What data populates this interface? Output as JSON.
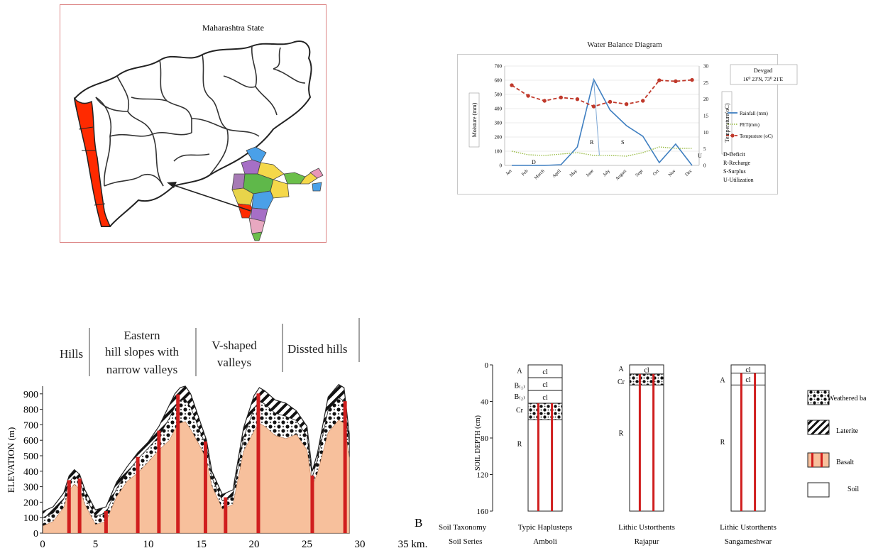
{
  "map": {
    "title": "Maharashtra State"
  },
  "water_balance": {
    "chart_data": {
      "type": "line",
      "title": "Water Balance Diagram",
      "categories": [
        "Jan",
        "Feb",
        "March",
        "April",
        "May",
        "June",
        "July",
        "August",
        "Sept",
        "Oct",
        "Nov",
        "Dec"
      ],
      "ylabel": "Moisture (mm)",
      "y2label": "Temperature(oC)",
      "ylim": [
        0,
        700
      ],
      "y2lim": [
        0,
        30
      ],
      "yticks": [
        0,
        100,
        200,
        300,
        400,
        500,
        600,
        700
      ],
      "y2ticks": [
        0,
        5,
        10,
        15,
        20,
        25,
        30
      ],
      "series": [
        {
          "name": "Rainfall (mm)",
          "axis": "left",
          "values": [
            0,
            0,
            0,
            5,
            130,
            605,
            390,
            280,
            205,
            20,
            150,
            0
          ]
        },
        {
          "name": "PET(mm)",
          "axis": "left",
          "values": [
            100,
            75,
            70,
            80,
            90,
            70,
            70,
            65,
            90,
            130,
            120,
            120
          ]
        },
        {
          "name": "Temprature (oC)",
          "axis": "right",
          "values": [
            24.2,
            21,
            19.5,
            20.5,
            20,
            17.8,
            19.2,
            18.5,
            19.5,
            25.7,
            25.4,
            25.8
          ]
        }
      ],
      "station": {
        "name": "Devgad",
        "coords": "16⁰ 23'N, 73⁰ 21'E"
      },
      "zone_labels": [
        "D",
        "R",
        "S",
        "U"
      ],
      "legend_notes": [
        "D-Deficit",
        "R-Recharge",
        "S-Surplus",
        "U-Utilization"
      ],
      "legend": "right"
    }
  },
  "cross_section": {
    "chart_data": {
      "type": "area",
      "ylabel": "ELEVATION (m)",
      "yticks": [
        "0",
        "100",
        "200",
        "300",
        "400",
        "500",
        "600",
        "700",
        "800",
        "900"
      ],
      "xticks": [
        "0",
        "5",
        "10",
        "15",
        "20",
        "25",
        "30",
        "35 km."
      ],
      "end_label": "B",
      "elevation_profile": {
        "x_km": [
          0,
          1,
          2,
          2.5,
          3,
          3.5,
          4,
          5,
          6,
          7,
          8,
          9,
          10,
          11,
          12,
          12.5,
          13,
          13.5,
          14,
          15,
          15.5,
          16,
          17,
          18,
          19,
          20,
          20.5,
          21,
          22,
          23,
          24,
          25,
          25.5,
          26,
          27,
          28,
          28.5,
          29
        ],
        "y_m": [
          140,
          170,
          260,
          370,
          410,
          380,
          280,
          150,
          170,
          330,
          430,
          520,
          590,
          690,
          830,
          900,
          940,
          950,
          900,
          700,
          600,
          400,
          250,
          280,
          680,
          890,
          940,
          920,
          860,
          840,
          790,
          690,
          400,
          520,
          880,
          960,
          940,
          640
        ]
      }
    },
    "zones": [
      "Hills",
      "Eastern\nhill slopes with\nnarrow valleys",
      "V-shaped\nvalleys",
      "Dissted hills"
    ]
  },
  "soil_profiles": {
    "yaxis_label": "SOIL DEPTH (cm)",
    "yticks": [
      "0",
      "40",
      "80",
      "120",
      "160"
    ],
    "row_labels": [
      "Soil Taxonomy",
      "Soil Series"
    ],
    "profiles": [
      {
        "taxonomy": "Typic Haplusteps",
        "series": "Amboli",
        "horizon_labels": [
          "A",
          "B₍₁₎",
          "B₍₂₎",
          "Cr",
          "R"
        ],
        "cell": "cl"
      },
      {
        "taxonomy": "Lithic Ustorthents",
        "series": "Rajapur",
        "horizon_labels": [
          "A",
          "Cr",
          "R"
        ],
        "cell": "cl"
      },
      {
        "taxonomy": "Lithic Ustorthents",
        "series": "Sangameshwar",
        "horizon_labels": [
          "A",
          "R"
        ],
        "cell": "cl"
      }
    ],
    "legend": [
      {
        "label": "Weathered ba",
        "pattern": "checker"
      },
      {
        "label": "Laterite",
        "pattern": "hatch"
      },
      {
        "label": "Basalt",
        "pattern": "basalt"
      },
      {
        "label": "Soil",
        "pattern": "soil"
      }
    ]
  },
  "colors": {
    "rainfall": "#3f7fc1",
    "pet": "#93b83a",
    "temperature": "#c0392b",
    "basalt": "#f7c09c",
    "dyke": "#d01e1e",
    "konkan": "#ff2a00"
  }
}
